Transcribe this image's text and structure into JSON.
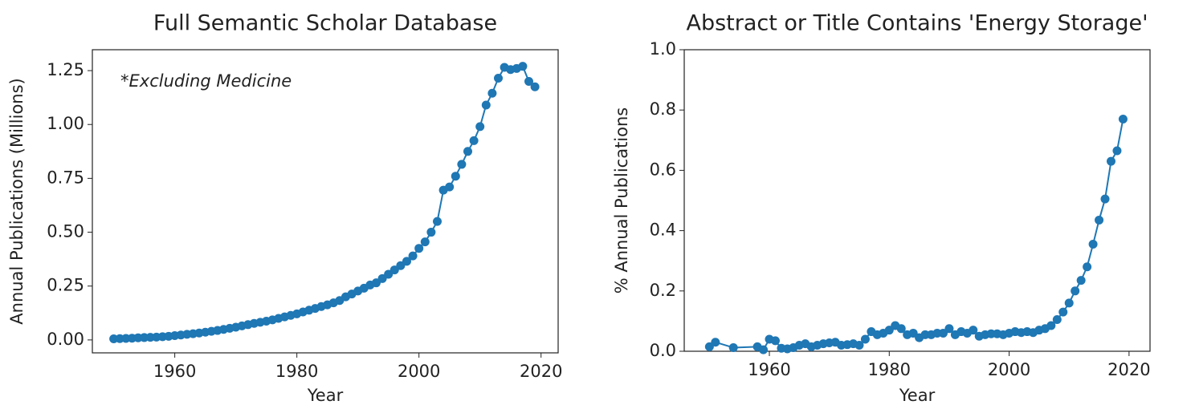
{
  "chart_data": [
    {
      "type": "line",
      "title": "Full Semantic Scholar Database",
      "xlabel": "Year",
      "ylabel": "Annual Publications (Millions)",
      "annotation": "*Excluding Medicine",
      "color": "#1f77b4",
      "markers": true,
      "xlim": [
        1946.5,
        2022.8
      ],
      "ylim": [
        -0.06,
        1.347
      ],
      "xticks": [
        1960,
        1980,
        2000,
        2020
      ],
      "yticks": [
        {
          "value": 0,
          "label": "0.00"
        },
        {
          "value": 0.25,
          "label": "0.25"
        },
        {
          "value": 0.5,
          "label": "0.50"
        },
        {
          "value": 0.75,
          "label": "0.75"
        },
        {
          "value": 1,
          "label": "1.00"
        },
        {
          "value": 1.25,
          "label": "1.25"
        }
      ],
      "x": [
        1950,
        1951,
        1952,
        1953,
        1954,
        1955,
        1956,
        1957,
        1958,
        1959,
        1960,
        1961,
        1962,
        1963,
        1964,
        1965,
        1966,
        1967,
        1968,
        1969,
        1970,
        1971,
        1972,
        1973,
        1974,
        1975,
        1976,
        1977,
        1978,
        1979,
        1980,
        1981,
        1982,
        1983,
        1984,
        1985,
        1986,
        1987,
        1988,
        1989,
        1990,
        1991,
        1992,
        1993,
        1994,
        1995,
        1996,
        1997,
        1998,
        1999,
        2000,
        2001,
        2002,
        2003,
        2004,
        2005,
        2006,
        2007,
        2008,
        2009,
        2010,
        2011,
        2012,
        2013,
        2014,
        2015,
        2016,
        2017,
        2018,
        2019
      ],
      "values": [
        0.005,
        0.006,
        0.007,
        0.008,
        0.01,
        0.011,
        0.012,
        0.013,
        0.015,
        0.017,
        0.02,
        0.023,
        0.026,
        0.029,
        0.032,
        0.036,
        0.04,
        0.044,
        0.049,
        0.054,
        0.059,
        0.065,
        0.071,
        0.077,
        0.082,
        0.087,
        0.093,
        0.1,
        0.107,
        0.114,
        0.121,
        0.13,
        0.138,
        0.146,
        0.155,
        0.163,
        0.172,
        0.183,
        0.2,
        0.213,
        0.227,
        0.24,
        0.255,
        0.265,
        0.285,
        0.305,
        0.325,
        0.345,
        0.365,
        0.39,
        0.425,
        0.455,
        0.5,
        0.55,
        0.695,
        0.71,
        0.76,
        0.815,
        0.875,
        0.925,
        0.99,
        1.09,
        1.145,
        1.215,
        1.265,
        1.255,
        1.26,
        1.27,
        1.2,
        1.175
      ]
    },
    {
      "type": "line",
      "title": "Abstract or Title Contains 'Energy Storage'",
      "xlabel": "Year",
      "ylabel": "% Annual Publications",
      "color": "#1f77b4",
      "markers": true,
      "xlim": [
        1945.8,
        2023.5
      ],
      "ylim": [
        0,
        1
      ],
      "xticks": [
        1960,
        1980,
        2000,
        2020
      ],
      "yticks": [
        {
          "value": 0,
          "label": "0.0"
        },
        {
          "value": 0.2,
          "label": "0.2"
        },
        {
          "value": 0.4,
          "label": "0.4"
        },
        {
          "value": 0.6,
          "label": "0.6"
        },
        {
          "value": 0.8,
          "label": "0.8"
        },
        {
          "value": 1,
          "label": "1.0"
        }
      ],
      "x": [
        1950,
        1951,
        1954,
        1958,
        1959,
        1960,
        1961,
        1962,
        1963,
        1964,
        1965,
        1966,
        1967,
        1968,
        1969,
        1970,
        1971,
        1972,
        1973,
        1974,
        1975,
        1976,
        1977,
        1978,
        1979,
        1980,
        1981,
        1982,
        1983,
        1984,
        1985,
        1986,
        1987,
        1988,
        1989,
        1990,
        1991,
        1992,
        1993,
        1994,
        1995,
        1996,
        1997,
        1998,
        1999,
        2000,
        2001,
        2002,
        2003,
        2004,
        2005,
        2006,
        2007,
        2008,
        2009,
        2010,
        2011,
        2012,
        2013,
        2014,
        2015,
        2016,
        2017,
        2018,
        2019
      ],
      "values": [
        0.015,
        0.03,
        0.012,
        0.015,
        0.005,
        0.04,
        0.035,
        0.01,
        0.008,
        0.012,
        0.02,
        0.025,
        0.015,
        0.02,
        0.025,
        0.028,
        0.03,
        0.02,
        0.022,
        0.025,
        0.02,
        0.04,
        0.065,
        0.055,
        0.06,
        0.07,
        0.085,
        0.075,
        0.055,
        0.06,
        0.045,
        0.055,
        0.055,
        0.06,
        0.06,
        0.075,
        0.055,
        0.065,
        0.06,
        0.07,
        0.05,
        0.055,
        0.058,
        0.058,
        0.055,
        0.06,
        0.065,
        0.062,
        0.065,
        0.062,
        0.07,
        0.075,
        0.085,
        0.105,
        0.13,
        0.16,
        0.2,
        0.235,
        0.28,
        0.355,
        0.435,
        0.505,
        0.63,
        0.665,
        0.77
      ]
    }
  ]
}
